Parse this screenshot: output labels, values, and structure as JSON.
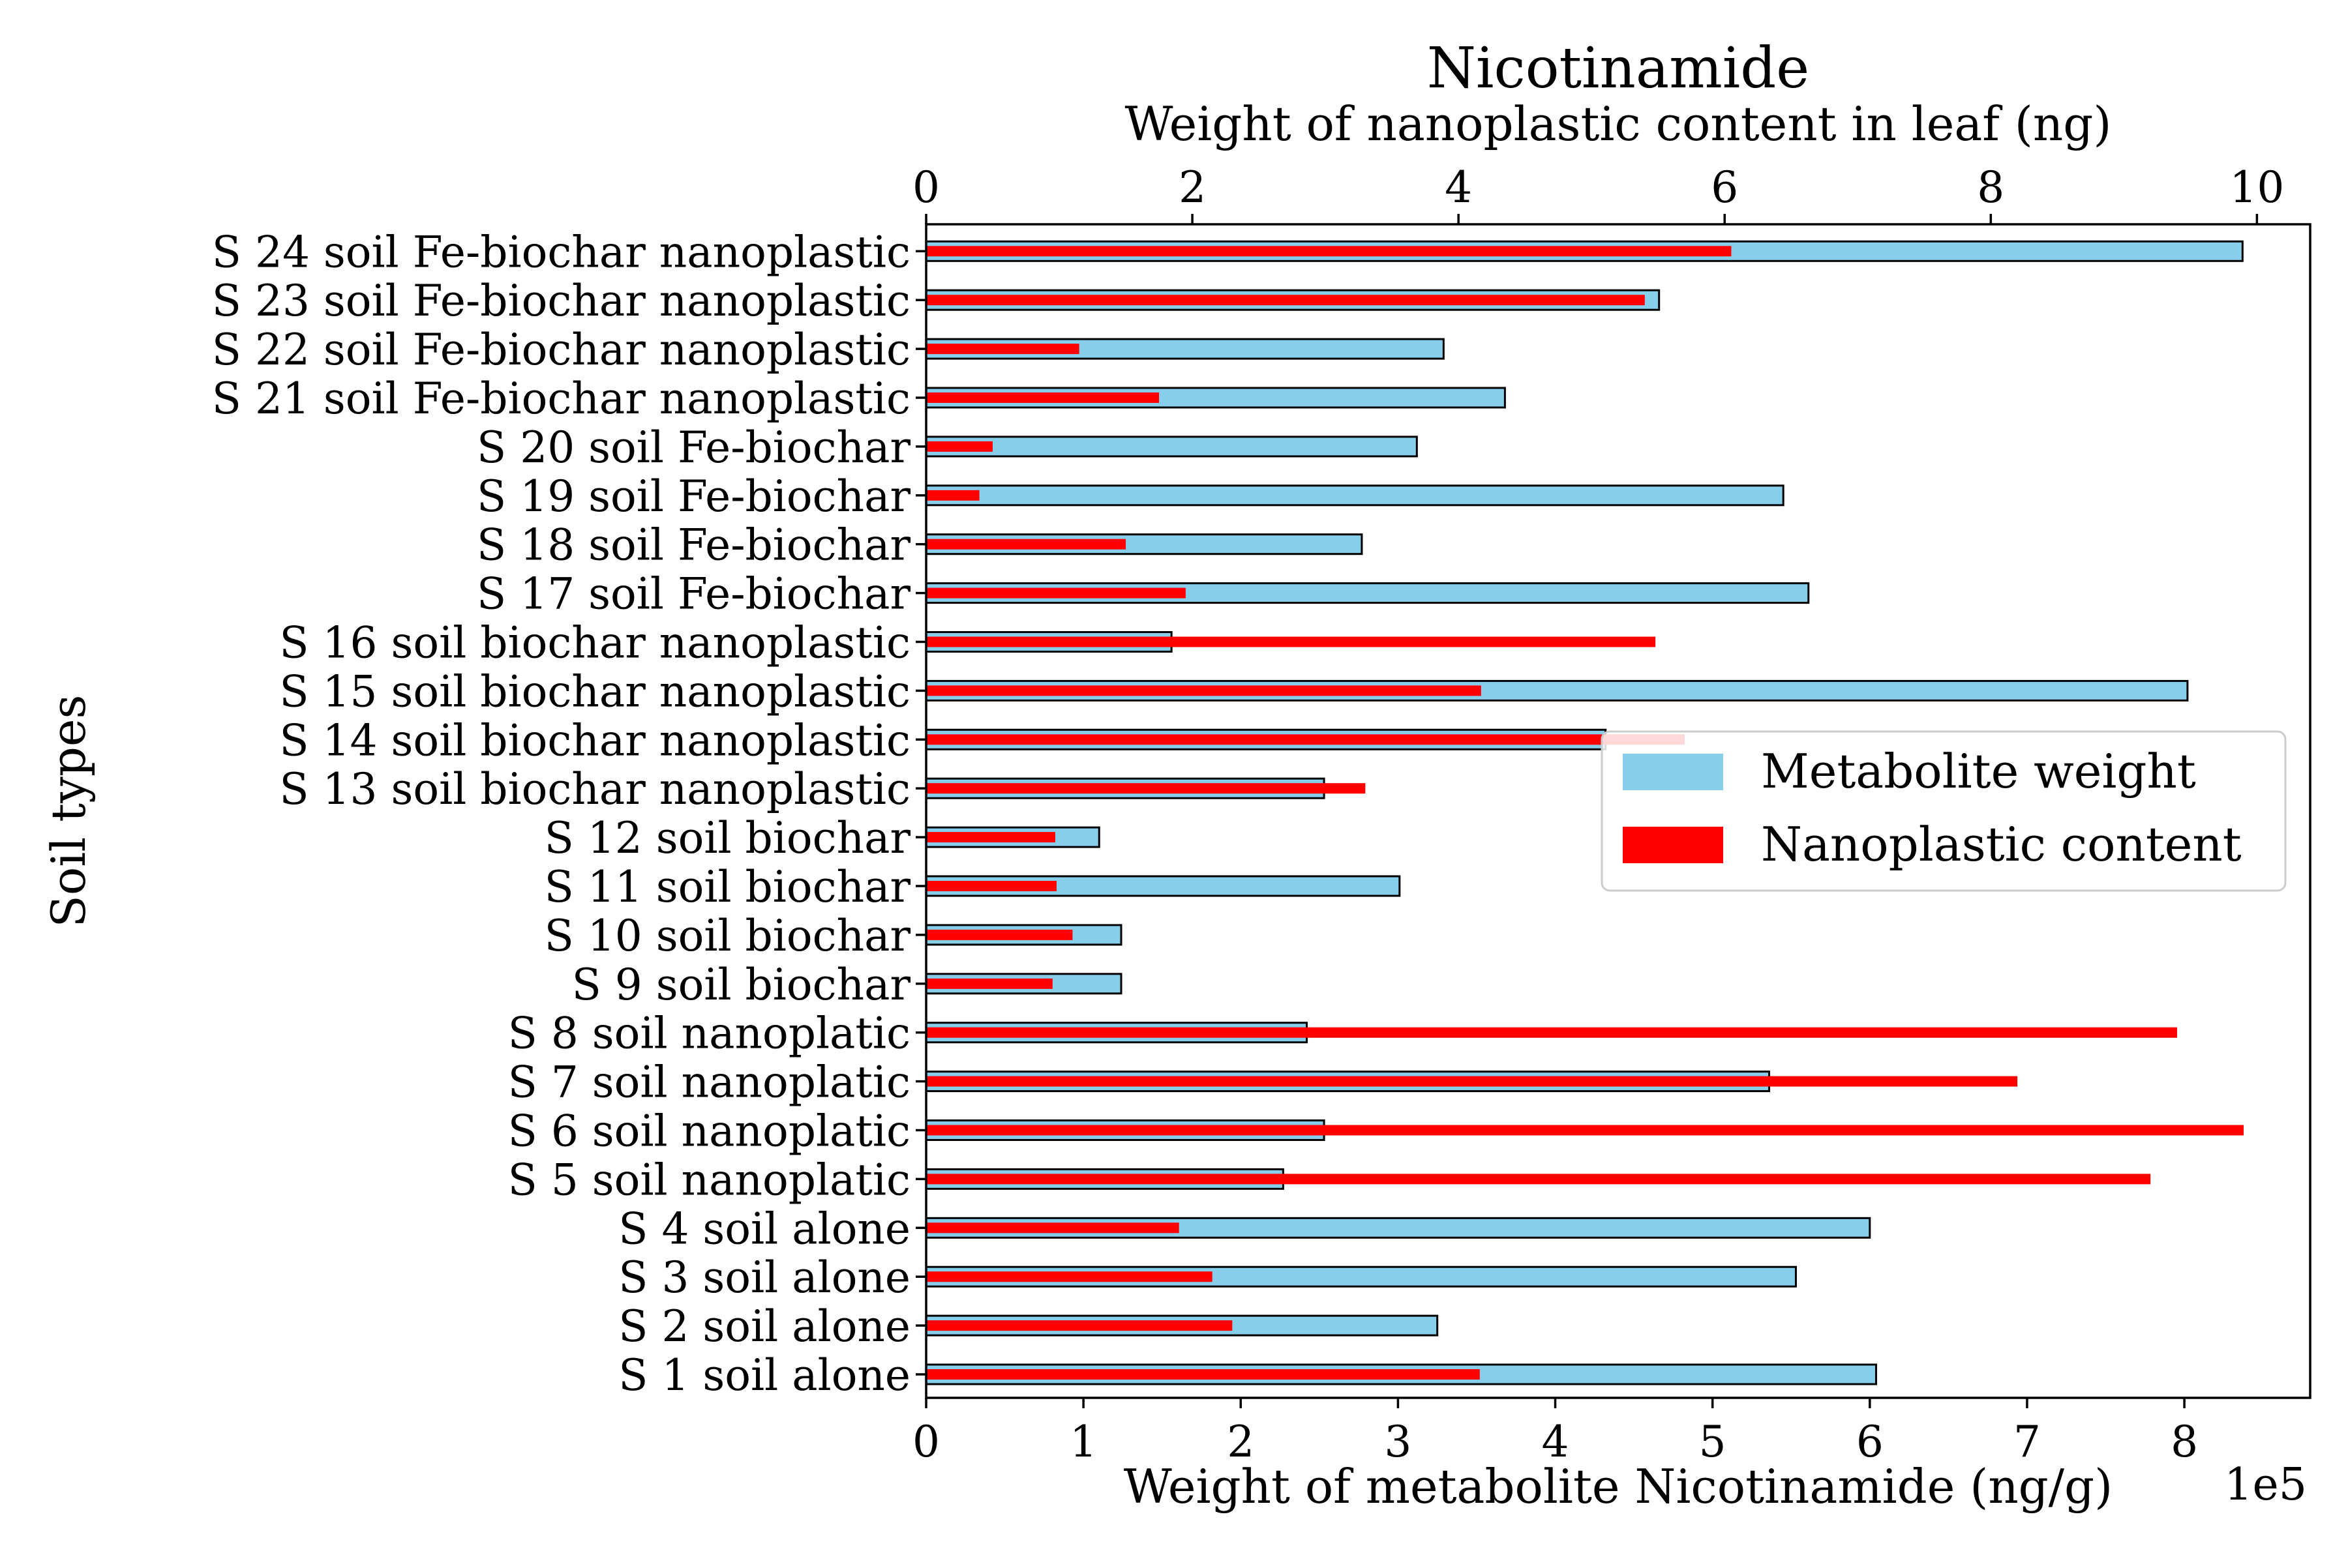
{
  "chart_data": {
    "type": "bar",
    "orientation": "horizontal",
    "title": "Nicotinamide",
    "title_color": "#a52a2a",
    "xlabel": "Weight of metabolite Nicotinamide (ng/g)",
    "x_offset_label": "1e5",
    "x2label": "Weight of nanoplastic content in leaf (ng)",
    "ylabel": "Soil types",
    "xlim": [
      0,
      880000
    ],
    "x2lim": [
      0,
      10.4
    ],
    "xticks": [
      0,
      1,
      2,
      3,
      4,
      5,
      6,
      7,
      8
    ],
    "x2ticks": [
      0,
      2,
      4,
      6,
      8,
      10
    ],
    "categories": [
      "S 1 soil alone",
      "S 2 soil alone",
      "S 3 soil alone",
      "S 4 soil alone",
      "S 5 soil nanoplatic",
      "S 6 soil nanoplatic",
      "S 7 soil nanoplatic",
      "S 8 soil nanoplatic",
      "S 9 soil biochar",
      "S 10 soil biochar",
      "S 11 soil biochar",
      "S 12 soil biochar",
      "S 13 soil biochar nanoplastic",
      "S 14 soil biochar nanoplastic",
      "S 15 soil biochar nanoplastic",
      "S 16 soil biochar nanoplastic",
      "S 17 soil Fe-biochar",
      "S 18 soil Fe-biochar",
      "S 19 soil Fe-biochar",
      "S 20 soil Fe-biochar",
      "S 21 soil Fe-biochar nanoplastic",
      "S 22 soil Fe-biochar nanoplastic",
      "S 23 soil Fe-biochar nanoplastic",
      "S 24 soil Fe-biochar nanoplastic"
    ],
    "series": [
      {
        "name": "Metabolite weight",
        "axis": "bottom",
        "color": "#87ceeb",
        "values": [
          604000,
          325000,
          553000,
          600000,
          227000,
          253000,
          536000,
          242000,
          124000,
          124000,
          301000,
          110000,
          253000,
          432000,
          802000,
          156000,
          561000,
          277000,
          545000,
          312000,
          368000,
          329000,
          466000,
          837000
        ]
      },
      {
        "name": "Nanoplastic content",
        "axis": "top",
        "color": "#ff0000",
        "values": [
          4.16,
          2.3,
          2.15,
          1.9,
          9.2,
          9.9,
          8.2,
          9.4,
          0.95,
          1.1,
          0.98,
          0.97,
          3.3,
          5.7,
          4.17,
          5.48,
          1.95,
          1.5,
          0.4,
          0.5,
          1.75,
          1.15,
          5.4,
          6.05
        ]
      }
    ],
    "legend": {
      "position": "right-center"
    },
    "grid": false
  }
}
